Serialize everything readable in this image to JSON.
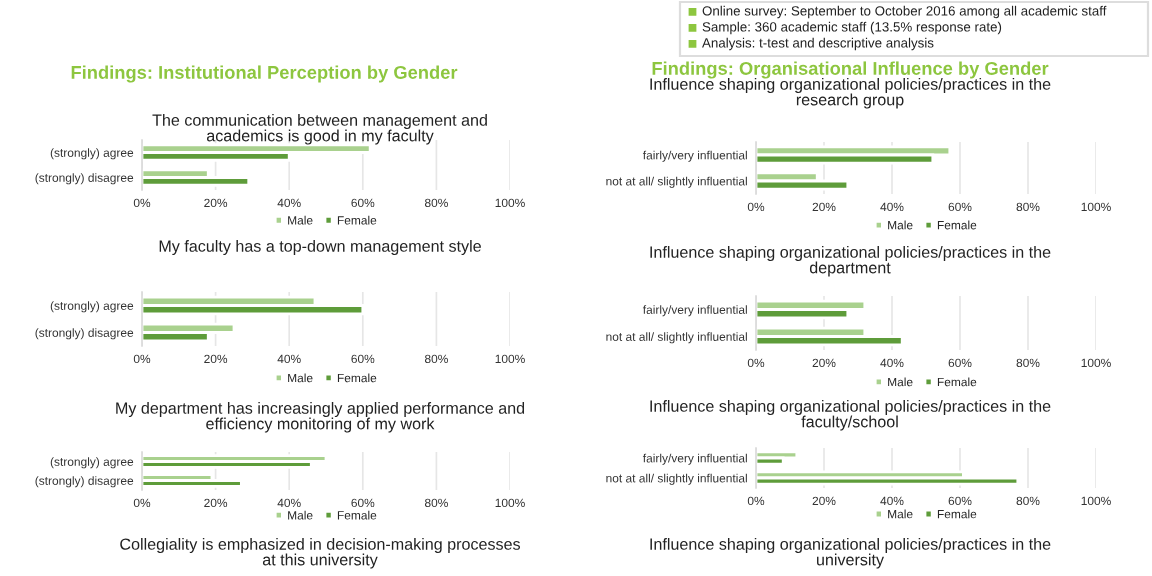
{
  "chart_data": [
    {
      "type": "other",
      "annotations": [
        "Online survey: September to October 2016 among all academic staff",
        "Sample: 360 academic staff (13.5% response rate)",
        "Analysis: t-test and descriptive analysis"
      ]
    },
    {
      "type": "other",
      "title": "Findings: Institutional Perception by Gender"
    },
    {
      "type": "bar",
      "orientation": "horizontal",
      "title": "The communication between management and academics is good in my faculty",
      "categories": [
        "(strongly) agree",
        "(strongly) disagree"
      ],
      "series": [
        {
          "name": "Male",
          "color": "#a9d18e",
          "values": [
            62,
            18
          ]
        },
        {
          "name": "Female",
          "color": "#5e9c3a",
          "values": [
            40,
            29
          ]
        }
      ],
      "xlim": [
        0,
        100
      ],
      "xticks": [
        {
          "value": 0,
          "label": "0%"
        },
        {
          "value": 20,
          "label": "20%"
        },
        {
          "value": 40,
          "label": "40%"
        },
        {
          "value": 60,
          "label": "60%"
        },
        {
          "value": 80,
          "label": "80%"
        },
        {
          "value": 100,
          "label": "100%"
        }
      ],
      "grid": "x",
      "legend": "bottom"
    },
    {
      "type": "bar",
      "orientation": "horizontal",
      "title": "My faculty has a top-down management style",
      "categories": [
        "(strongly) agree",
        "(strongly) disagree"
      ],
      "series": [
        {
          "name": "Male",
          "color": "#a9d18e",
          "values": [
            47,
            25
          ]
        },
        {
          "name": "Female",
          "color": "#5e9c3a",
          "values": [
            60,
            18
          ]
        }
      ],
      "xlim": [
        0,
        100
      ],
      "xticks": [
        {
          "value": 0,
          "label": "0%"
        },
        {
          "value": 20,
          "label": "20%"
        },
        {
          "value": 40,
          "label": "40%"
        },
        {
          "value": 60,
          "label": "60%"
        },
        {
          "value": 80,
          "label": "80%"
        },
        {
          "value": 100,
          "label": "100%"
        }
      ],
      "grid": "x",
      "legend": "bottom"
    },
    {
      "type": "bar",
      "orientation": "horizontal",
      "title": "My department has increasingly applied performance and efficiency monitoring of my work",
      "categories": [
        "(strongly) agree",
        "(strongly) disagree"
      ],
      "series": [
        {
          "name": "Male",
          "color": "#a9d18e",
          "values": [
            50,
            19
          ]
        },
        {
          "name": "Female",
          "color": "#5e9c3a",
          "values": [
            46,
            27
          ]
        }
      ],
      "xlim": [
        0,
        100
      ],
      "xticks": [
        {
          "value": 0,
          "label": "0%"
        },
        {
          "value": 20,
          "label": "20%"
        },
        {
          "value": 40,
          "label": "40%"
        },
        {
          "value": 60,
          "label": "60%"
        },
        {
          "value": 80,
          "label": "80%"
        },
        {
          "value": 100,
          "label": "100%"
        }
      ],
      "grid": "x",
      "legend": "bottom"
    },
    {
      "type": "other",
      "title": "Collegiality is emphasized in decision-making processes at this university"
    },
    {
      "type": "other",
      "title": "Findings: Organisational Influence by Gender"
    },
    {
      "type": "bar",
      "orientation": "horizontal",
      "title": "Influence shaping organizational policies/practices in the research group",
      "categories": [
        "fairly/very influential",
        "not at all/ slightly influential"
      ],
      "series": [
        {
          "name": "Male",
          "color": "#a9d18e",
          "values": [
            57,
            18
          ]
        },
        {
          "name": "Female",
          "color": "#5e9c3a",
          "values": [
            52,
            27
          ]
        }
      ],
      "xlim": [
        0,
        100
      ],
      "xticks": [
        {
          "value": 0,
          "label": "0%"
        },
        {
          "value": 20,
          "label": "20%"
        },
        {
          "value": 40,
          "label": "40%"
        },
        {
          "value": 60,
          "label": "60%"
        },
        {
          "value": 80,
          "label": "80%"
        },
        {
          "value": 100,
          "label": "100%"
        }
      ],
      "grid": "x",
      "legend": "bottom"
    },
    {
      "type": "bar",
      "orientation": "horizontal",
      "title": "Influence shaping organizational policies/practices in the department",
      "categories": [
        "fairly/very influential",
        "not at all/ slightly influential"
      ],
      "series": [
        {
          "name": "Male",
          "color": "#a9d18e",
          "values": [
            32,
            32
          ]
        },
        {
          "name": "Female",
          "color": "#5e9c3a",
          "values": [
            27,
            43
          ]
        }
      ],
      "xlim": [
        0,
        100
      ],
      "xticks": [
        {
          "value": 0,
          "label": "0%"
        },
        {
          "value": 20,
          "label": "20%"
        },
        {
          "value": 40,
          "label": "40%"
        },
        {
          "value": 60,
          "label": "60%"
        },
        {
          "value": 80,
          "label": "80%"
        },
        {
          "value": 100,
          "label": "100%"
        }
      ],
      "grid": "x",
      "legend": "bottom"
    },
    {
      "type": "bar",
      "orientation": "horizontal",
      "title": "Influence shaping organizational policies/practices in the faculty/school",
      "categories": [
        "fairly/very influential",
        "not at all/ slightly influential"
      ],
      "series": [
        {
          "name": "Male",
          "color": "#a9d18e",
          "values": [
            12,
            61
          ]
        },
        {
          "name": "Female",
          "color": "#5e9c3a",
          "values": [
            8,
            77
          ]
        }
      ],
      "xlim": [
        0,
        100
      ],
      "xticks": [
        {
          "value": 0,
          "label": "0%"
        },
        {
          "value": 20,
          "label": "20%"
        },
        {
          "value": 40,
          "label": "40%"
        },
        {
          "value": 60,
          "label": "60%"
        },
        {
          "value": 80,
          "label": "80%"
        },
        {
          "value": 100,
          "label": "100%"
        }
      ],
      "grid": "x",
      "legend": "bottom"
    },
    {
      "type": "other",
      "title": "Influence shaping organizational policies/practices in the university"
    }
  ]
}
